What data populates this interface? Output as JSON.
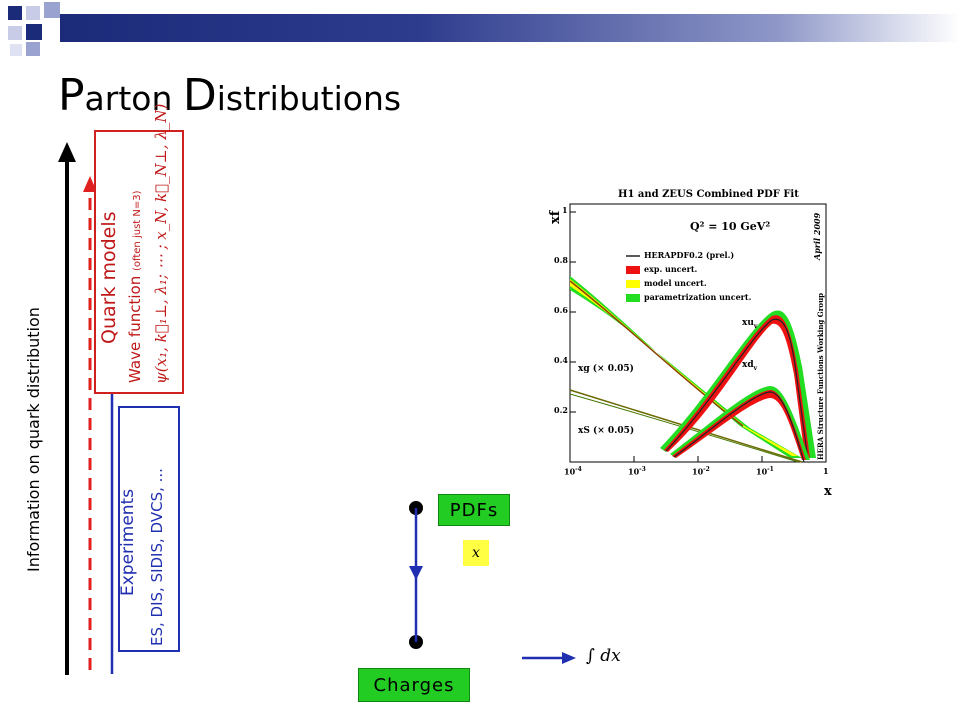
{
  "slide": {
    "title_cap1": "P",
    "title_rest1": "arton ",
    "title_cap2": "D",
    "title_rest2": "istributions"
  },
  "axis_label": "Information on quark distribution",
  "quark_models": {
    "heading": "Quark models",
    "wave_function": "Wave function",
    "note": "(often just N=3)",
    "formula": "ψ(x₁, k⃗₁⊥, λ₁; ⋯ ; x_N, k⃗_N⊥, λ_N)"
  },
  "experiments": {
    "heading": "Experiments",
    "list": "ES, DIS, SIDIS, DVCS, ..."
  },
  "flow": {
    "pdfs_label": "PDFs",
    "charges_label": "Charges",
    "x_label": "x",
    "integral_label": "∫ dx"
  },
  "plot": {
    "title": "H1 and ZEUS Combined PDF Fit",
    "q2": "Q² = 10 GeV²",
    "date": "April 2009",
    "ylabel": "xf",
    "xlabel": "x",
    "side_label": "HERA Structure Functions Working Group",
    "legend": [
      {
        "label": "HERAPDF0.2 (prel.)",
        "color": "#222222"
      },
      {
        "label": "exp. uncert.",
        "color": "#ee1111"
      },
      {
        "label": "model uncert.",
        "color": "#ffff00"
      },
      {
        "label": "parametrization uncert.",
        "color": "#22dd22"
      }
    ],
    "curve_labels": {
      "xuv": "xu",
      "xdv": "xd",
      "v": "v",
      "xg": "xg (× 0.05)",
      "xs": "xS (× 0.05)"
    },
    "yticks": [
      "0.2",
      "0.4",
      "0.6",
      "0.8",
      "1"
    ],
    "xticks": [
      "10",
      "10",
      "10",
      "10",
      "1"
    ],
    "xtick_exps": [
      "-4",
      "-3",
      "-2",
      "-1",
      ""
    ]
  },
  "colors": {
    "header_dark": "#1c2a7a",
    "red": "#d02020",
    "blue": "#1f2fb0",
    "green": "#22cc22",
    "yellow": "#ffff44"
  }
}
